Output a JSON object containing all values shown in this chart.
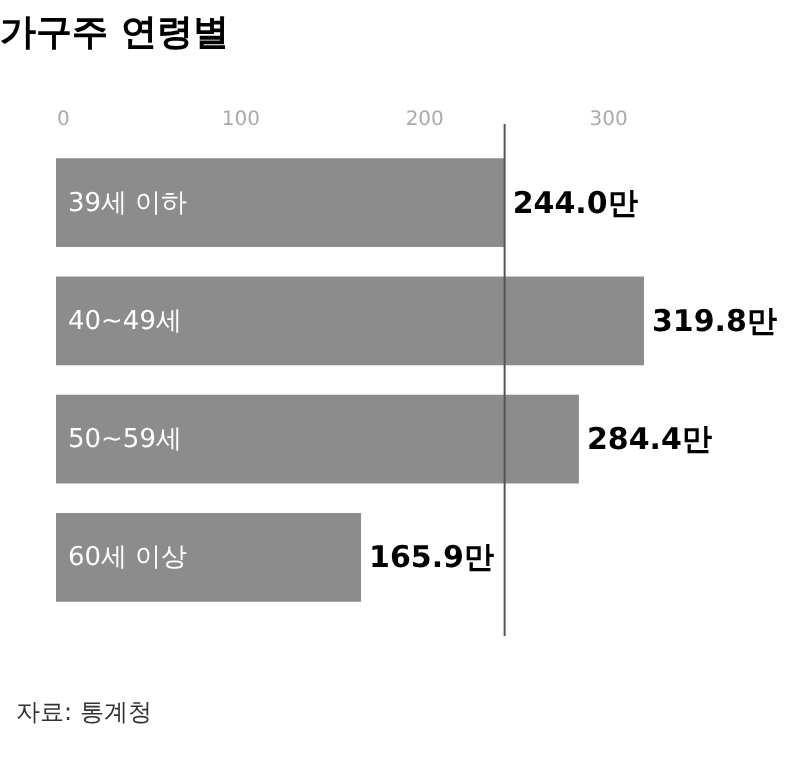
{
  "chart_data": {
    "type": "bar",
    "orientation": "horizontal",
    "title": "가구주 연령별",
    "categories": [
      "39세 이하",
      "40~49세",
      "50~59세",
      "60세 이상"
    ],
    "values": [
      244.0,
      319.8,
      284.4,
      165.9
    ],
    "value_labels": [
      "244.0만",
      "319.8만",
      "284.4만",
      "165.9만"
    ],
    "color": "#8c8c8c",
    "xlim": [
      0,
      319.8
    ],
    "xticks": [
      0,
      100,
      200,
      300
    ],
    "ref_lines": [
      {
        "axis": "x",
        "value": 244.0,
        "label": null,
        "color": "#555555"
      }
    ],
    "grid": false,
    "annotations": [
      "자료: 통계청"
    ]
  }
}
